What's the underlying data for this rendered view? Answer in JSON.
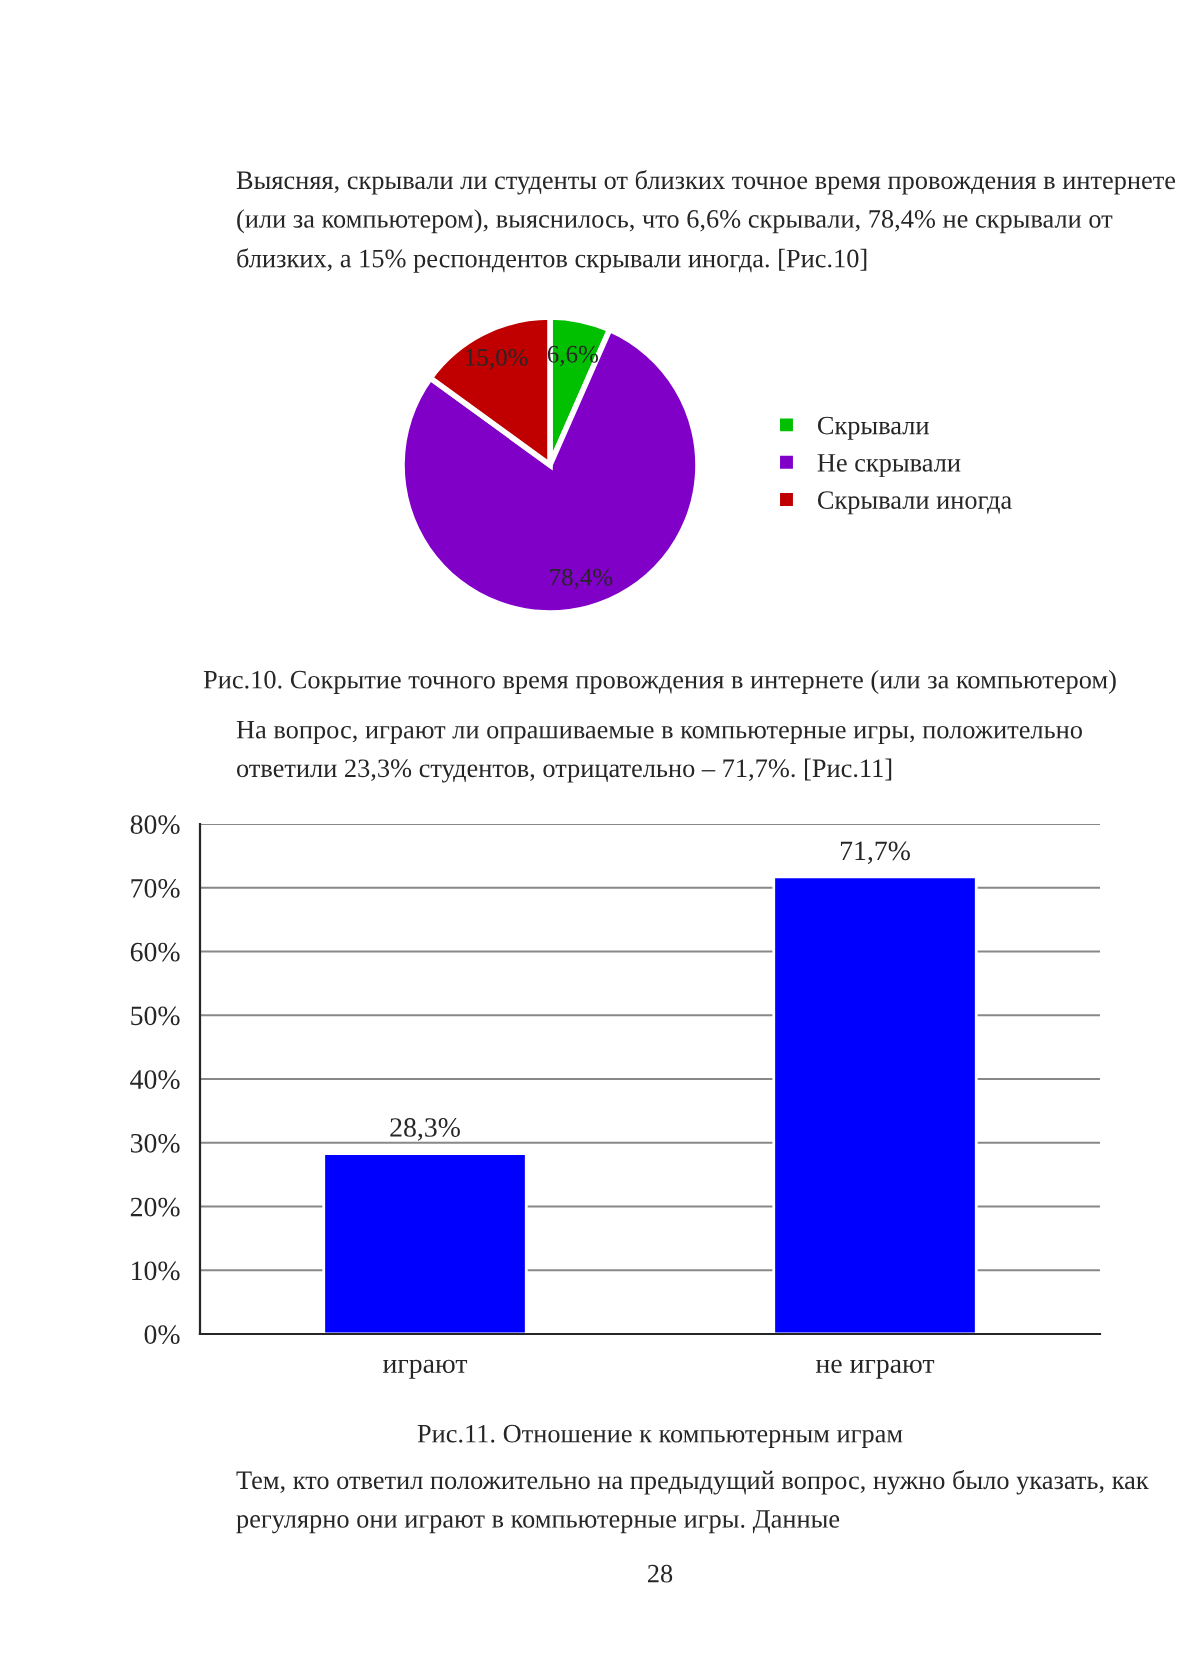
{
  "chart_data": [
    {
      "type": "pie",
      "categories": [
        "Скрывали",
        "Не скрывали",
        "Скрывали иногда"
      ],
      "values": [
        6.6,
        78.4,
        15.0
      ],
      "colors": [
        "#00c000",
        "#8000c8",
        "#c00000"
      ],
      "value_labels": [
        "6,6%",
        "78,4%",
        "15,0%"
      ],
      "legend": "right",
      "annotations": [
        "Выясняя, скрывали ли студенты от близких точное время провождения в интернете (или за компьютером), выяснилось, что 6,6% скрывали, 78,4% не скрывали от близких, а 15% респондентов скрывали иногда. [Рис.10]",
        "Рис.10. Сокрытие точного время провождения в интернете (или за компьютером)"
      ]
    },
    {
      "type": "bar",
      "categories": [
        "играют",
        "не играют"
      ],
      "values": [
        28.3,
        71.7
      ],
      "color": "#0000ff",
      "value_labels": [
        "28,3%",
        "71,7%"
      ],
      "ylim": [
        0,
        80
      ],
      "yticks": [
        {
          "value": 0,
          "label": "0%"
        },
        {
          "value": 10,
          "label": "10%"
        },
        {
          "value": 20,
          "label": "20%"
        },
        {
          "value": 30,
          "label": "30%"
        },
        {
          "value": 40,
          "label": "40%"
        },
        {
          "value": 50,
          "label": "50%"
        },
        {
          "value": 60,
          "label": "60%"
        },
        {
          "value": 70,
          "label": "70%"
        },
        {
          "value": 80,
          "label": "80%"
        }
      ],
      "grid": "y",
      "annotations": [
        "На вопрос, играют ли опрашиваемые в компьютерные игры, положительно ответили 23,3% студентов, отрицательно – 71,7%. [Рис.11]",
        "Рис.11. Отношение к компьютерным играм",
        "Тем, кто ответил положительно на предыдущий вопрос, нужно было указать, как регулярно они играют в компьютерные игры. Данные",
        "28"
      ]
    }
  ]
}
